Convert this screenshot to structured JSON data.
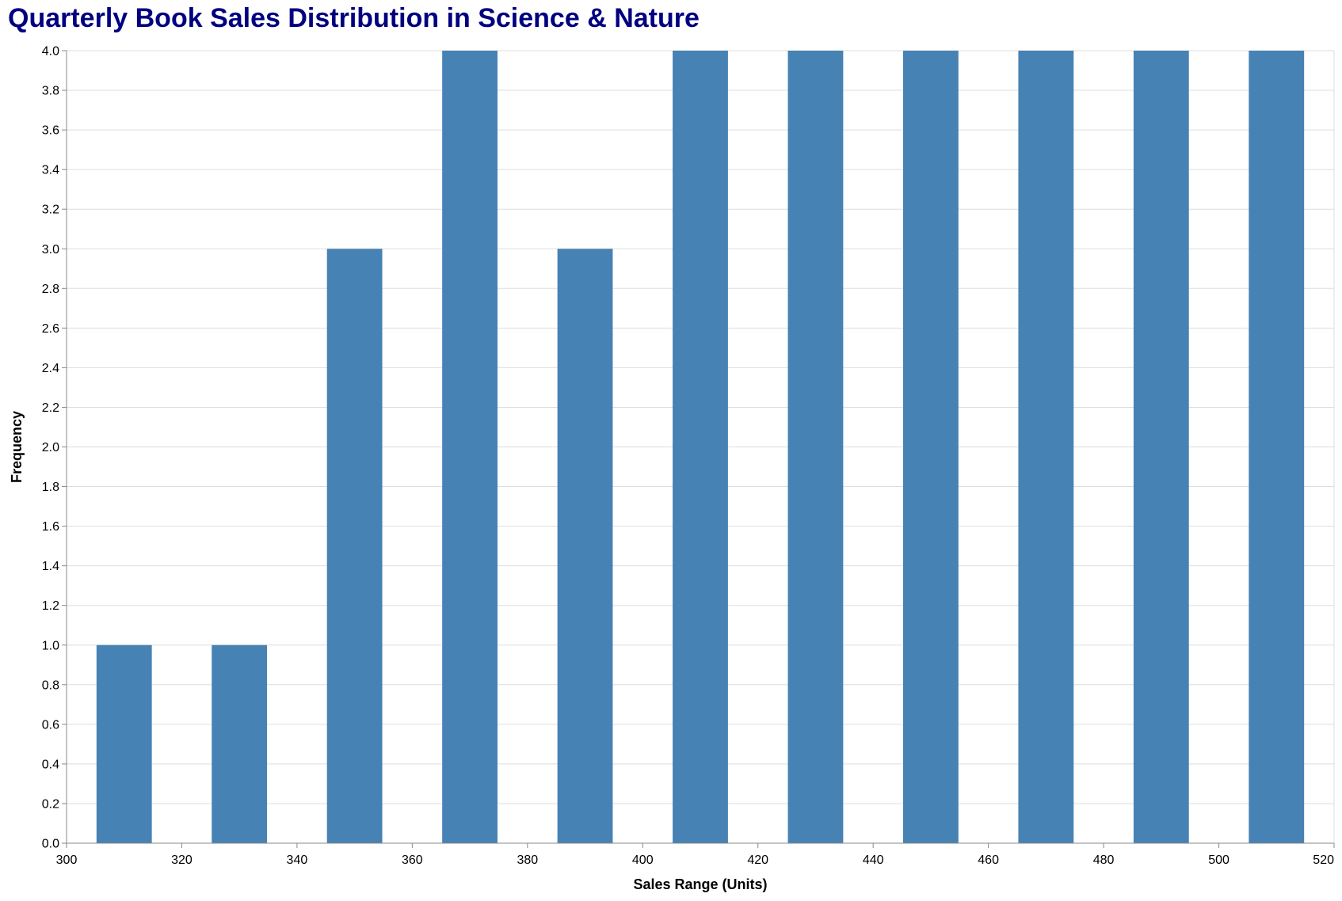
{
  "chart_data": {
    "type": "bar",
    "title": "Quarterly Book Sales Distribution in Science & Nature",
    "xlabel": "Sales Range (Units)",
    "ylabel": "Frequency",
    "bins": [
      {
        "start": 300,
        "end": 320,
        "count": 1
      },
      {
        "start": 320,
        "end": 340,
        "count": 1
      },
      {
        "start": 340,
        "end": 360,
        "count": 3
      },
      {
        "start": 360,
        "end": 380,
        "count": 4
      },
      {
        "start": 380,
        "end": 400,
        "count": 3
      },
      {
        "start": 400,
        "end": 420,
        "count": 4
      },
      {
        "start": 420,
        "end": 440,
        "count": 4
      },
      {
        "start": 440,
        "end": 460,
        "count": 4
      },
      {
        "start": 460,
        "end": 480,
        "count": 4
      },
      {
        "start": 480,
        "end": 500,
        "count": 4
      },
      {
        "start": 500,
        "end": 520,
        "count": 4
      }
    ],
    "xlim": [
      300,
      520
    ],
    "ylim": [
      0,
      4
    ],
    "x_ticks": [
      "300",
      "320",
      "340",
      "360",
      "380",
      "400",
      "420",
      "440",
      "460",
      "480",
      "500",
      "520"
    ],
    "y_ticks": [
      "0.0",
      "0.2",
      "0.4",
      "0.6",
      "0.8",
      "1.0",
      "1.2",
      "1.4",
      "1.6",
      "1.8",
      "2.0",
      "2.2",
      "2.4",
      "2.6",
      "2.8",
      "3.0",
      "3.2",
      "3.4",
      "3.6",
      "3.8",
      "4.0"
    ],
    "grid": true,
    "colors": {
      "bar": "#4682B4",
      "title": "#000080",
      "grid": "#dddddd",
      "axis": "#888888"
    }
  }
}
